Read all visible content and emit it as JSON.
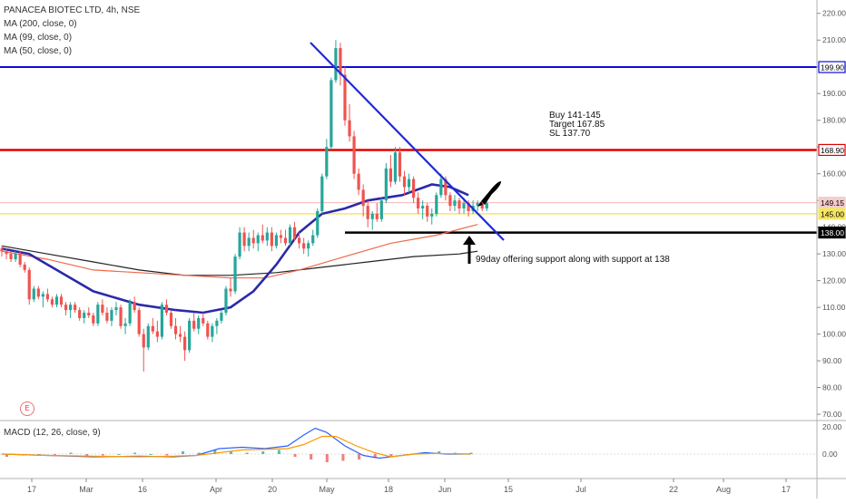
{
  "legend": {
    "symbol": "PANACEA BIOTEC LTD, 4h, NSE",
    "ma200": "MA (200, close, 0)",
    "ma99": "MA (99, close, 0)",
    "ma50": "MA (50, close, 0)",
    "macd": "MACD (12, 26, close, 9)"
  },
  "annotations": {
    "trade_plan": [
      "Buy 141-145",
      "Target 167.85",
      "SL 137.70"
    ],
    "support_note": "99day offering support along with support at 138",
    "earnings_badge": "E"
  },
  "colors": {
    "up": "#26a69a",
    "down": "#ef5350",
    "ma200": "#222222",
    "ma99": "#f0684a",
    "ma50": "#2a2aa8",
    "trendline": "#1f2bd6",
    "level_blue": "#0c0cd8",
    "level_red": "#e00000",
    "level_yellow": "#f5e663",
    "macd": "#2962ff",
    "signal": "#ff9800"
  },
  "chart_data": {
    "type": "candlestick",
    "price_axis": {
      "ticks": [
        "220.00",
        "210.00",
        "200.00",
        "190.00",
        "180.00",
        "170.00",
        "160.00",
        "150.00",
        "140.00",
        "130.00",
        "120.00",
        "110.00",
        "100.00",
        "90.00",
        "80.00",
        "70.00"
      ],
      "range": [
        68,
        225
      ]
    },
    "macd_axis": {
      "ticks": [
        "20.00",
        "0.00"
      ],
      "range": [
        -18,
        24
      ]
    },
    "time_axis": [
      "17",
      "Mar",
      "16",
      "Apr",
      "20",
      "May",
      "18",
      "Jun",
      "15",
      "Jul",
      "22",
      "Aug",
      "17"
    ],
    "price_labels": [
      {
        "value": 199.9,
        "text": "199.90",
        "style": "blue"
      },
      {
        "value": 168.9,
        "text": "168.90",
        "style": "red"
      },
      {
        "value": 149.15,
        "text": "149.15",
        "style": "pink"
      },
      {
        "value": 145.0,
        "text": "145.00",
        "style": "yellow"
      },
      {
        "value": 138.0,
        "text": "138.00",
        "style": "black"
      }
    ],
    "horizontal_levels": [
      {
        "value": 199.9,
        "color": "level_blue"
      },
      {
        "value": 168.9,
        "color": "level_red"
      },
      {
        "value": 149.15,
        "color": "pink"
      },
      {
        "value": 145.0,
        "color": "level_yellow"
      }
    ],
    "support_line": {
      "value": 138.0,
      "from_bar": 144,
      "to_bar": 999
    },
    "trendline": [
      {
        "bar": 128,
        "price": 211
      },
      {
        "bar": 213,
        "price": 139
      }
    ],
    "candles": [
      [
        132,
        133,
        129,
        131
      ],
      [
        131,
        132,
        128,
        130
      ],
      [
        130,
        131,
        127,
        128
      ],
      [
        128,
        131,
        127,
        130
      ],
      [
        130,
        131,
        125,
        126
      ],
      [
        126,
        127,
        123,
        124
      ],
      [
        124,
        125,
        111,
        113
      ],
      [
        113,
        118,
        112,
        117
      ],
      [
        117,
        118,
        113,
        114
      ],
      [
        114,
        116,
        110,
        115
      ],
      [
        115,
        117,
        112,
        113
      ],
      [
        113,
        114,
        110,
        111
      ],
      [
        111,
        115,
        110,
        114
      ],
      [
        114,
        115,
        110,
        111
      ],
      [
        111,
        112,
        107,
        109
      ],
      [
        109,
        112,
        106,
        111
      ],
      [
        111,
        112,
        108,
        109
      ],
      [
        109,
        110,
        105,
        106
      ],
      [
        106,
        109,
        104,
        108
      ],
      [
        108,
        110,
        106,
        107
      ],
      [
        107,
        108,
        103,
        104
      ],
      [
        104,
        112,
        103,
        111
      ],
      [
        111,
        113,
        107,
        108
      ],
      [
        108,
        110,
        104,
        105
      ],
      [
        105,
        110,
        103,
        109
      ],
      [
        109,
        112,
        107,
        110
      ],
      [
        110,
        111,
        102,
        103
      ],
      [
        103,
        106,
        100,
        104
      ],
      [
        104,
        113,
        103,
        112
      ],
      [
        112,
        114,
        108,
        109
      ],
      [
        109,
        110,
        99,
        100
      ],
      [
        100,
        102,
        86,
        95
      ],
      [
        95,
        104,
        94,
        103
      ],
      [
        103,
        106,
        100,
        101
      ],
      [
        101,
        105,
        97,
        99
      ],
      [
        99,
        112,
        98,
        111
      ],
      [
        111,
        113,
        107,
        108
      ],
      [
        108,
        109,
        102,
        103
      ],
      [
        103,
        106,
        98,
        100
      ],
      [
        100,
        103,
        97,
        99
      ],
      [
        99,
        101,
        90,
        94
      ],
      [
        94,
        106,
        93,
        105
      ],
      [
        105,
        108,
        101,
        102
      ],
      [
        102,
        107,
        100,
        106
      ],
      [
        106,
        108,
        103,
        104
      ],
      [
        104,
        105,
        98,
        99
      ],
      [
        99,
        104,
        97,
        103
      ],
      [
        103,
        106,
        100,
        105
      ],
      [
        105,
        109,
        104,
        108
      ],
      [
        108,
        118,
        107,
        117
      ],
      [
        117,
        121,
        114,
        116
      ],
      [
        116,
        130,
        115,
        129
      ],
      [
        129,
        140,
        128,
        138
      ],
      [
        138,
        140,
        131,
        133
      ],
      [
        133,
        138,
        131,
        136
      ],
      [
        136,
        139,
        132,
        134
      ],
      [
        134,
        138,
        131,
        137
      ],
      [
        137,
        141,
        134,
        135
      ],
      [
        135,
        140,
        133,
        138
      ],
      [
        138,
        140,
        131,
        133
      ],
      [
        133,
        138,
        132,
        137
      ],
      [
        137,
        139,
        134,
        136
      ],
      [
        136,
        139,
        133,
        134
      ],
      [
        134,
        141,
        133,
        140
      ],
      [
        140,
        142,
        135,
        136
      ],
      [
        136,
        138,
        132,
        134
      ],
      [
        134,
        136,
        130,
        132
      ],
      [
        132,
        135,
        129,
        134
      ],
      [
        134,
        139,
        133,
        137
      ],
      [
        137,
        147,
        136,
        146
      ],
      [
        146,
        160,
        145,
        159
      ],
      [
        159,
        173,
        158,
        170
      ],
      [
        170,
        196,
        169,
        195
      ],
      [
        195,
        210,
        194,
        207
      ],
      [
        207,
        209,
        193,
        197
      ],
      [
        197,
        200,
        178,
        180
      ],
      [
        180,
        186,
        172,
        174
      ],
      [
        174,
        176,
        158,
        160
      ],
      [
        160,
        162,
        152,
        154
      ],
      [
        154,
        156,
        144,
        148
      ],
      [
        148,
        150,
        140,
        143
      ],
      [
        143,
        146,
        139,
        145
      ],
      [
        145,
        149,
        142,
        143
      ],
      [
        143,
        151,
        142,
        150
      ],
      [
        150,
        164,
        149,
        162
      ],
      [
        162,
        167,
        155,
        157
      ],
      [
        157,
        170,
        156,
        168
      ],
      [
        168,
        170,
        157,
        159
      ],
      [
        159,
        161,
        152,
        155
      ],
      [
        155,
        160,
        153,
        158
      ],
      [
        158,
        159,
        149,
        151
      ],
      [
        151,
        153,
        145,
        147
      ],
      [
        147,
        150,
        143,
        148
      ],
      [
        148,
        149,
        142,
        144
      ],
      [
        144,
        147,
        141,
        145
      ],
      [
        145,
        153,
        144,
        152
      ],
      [
        152,
        160,
        151,
        158
      ],
      [
        158,
        159,
        150,
        152
      ],
      [
        152,
        153,
        146,
        148
      ],
      [
        148,
        152,
        146,
        150
      ],
      [
        150,
        151,
        145,
        147
      ],
      [
        147,
        151,
        145,
        149
      ],
      [
        149,
        150,
        144,
        146
      ],
      [
        146,
        150,
        145,
        148
      ],
      [
        148,
        150,
        146,
        149
      ],
      [
        149,
        150,
        146,
        147
      ],
      [
        147,
        150,
        146,
        149
      ]
    ],
    "candle_bars_start": 0,
    "candle_bar_step": 1.64,
    "ma50": [
      [
        0,
        132
      ],
      [
        12,
        130
      ],
      [
        24,
        124
      ],
      [
        40,
        116
      ],
      [
        60,
        111
      ],
      [
        76,
        109
      ],
      [
        88,
        108
      ],
      [
        100,
        110
      ],
      [
        110,
        116
      ],
      [
        120,
        126
      ],
      [
        130,
        138
      ],
      [
        140,
        145
      ],
      [
        150,
        147
      ],
      [
        160,
        150
      ],
      [
        175,
        152
      ],
      [
        188,
        156
      ],
      [
        196,
        155
      ],
      [
        204,
        152
      ]
    ],
    "ma99": [
      [
        0,
        131
      ],
      [
        20,
        128
      ],
      [
        40,
        124
      ],
      [
        60,
        123
      ],
      [
        80,
        122
      ],
      [
        100,
        121
      ],
      [
        115,
        121
      ],
      [
        130,
        124
      ],
      [
        150,
        129
      ],
      [
        170,
        134
      ],
      [
        190,
        137
      ],
      [
        208,
        141
      ]
    ],
    "ma200": [
      [
        0,
        133
      ],
      [
        20,
        130
      ],
      [
        40,
        127
      ],
      [
        60,
        124
      ],
      [
        80,
        122
      ],
      [
        100,
        122
      ],
      [
        120,
        123
      ],
      [
        140,
        125
      ],
      [
        160,
        127
      ],
      [
        180,
        129
      ],
      [
        200,
        130
      ],
      [
        208,
        131
      ]
    ],
    "macd": [
      [
        0,
        0
      ],
      [
        20,
        -1
      ],
      [
        40,
        -2
      ],
      [
        60,
        -1.5
      ],
      [
        75,
        -2
      ],
      [
        85,
        -1
      ],
      [
        95,
        4
      ],
      [
        105,
        5
      ],
      [
        115,
        4
      ],
      [
        125,
        6
      ],
      [
        132,
        14
      ],
      [
        137,
        19
      ],
      [
        142,
        16
      ],
      [
        150,
        6
      ],
      [
        158,
        -1
      ],
      [
        165,
        -3
      ],
      [
        175,
        -1
      ],
      [
        185,
        1
      ],
      [
        195,
        0
      ],
      [
        205,
        0
      ]
    ],
    "signal": [
      [
        0,
        0
      ],
      [
        20,
        -1
      ],
      [
        40,
        -1.5
      ],
      [
        60,
        -2
      ],
      [
        75,
        -1.5
      ],
      [
        85,
        -1
      ],
      [
        95,
        1
      ],
      [
        105,
        3
      ],
      [
        115,
        3.5
      ],
      [
        125,
        4
      ],
      [
        132,
        7
      ],
      [
        140,
        13
      ],
      [
        146,
        13
      ],
      [
        155,
        6
      ],
      [
        163,
        1
      ],
      [
        170,
        -2
      ],
      [
        180,
        0
      ],
      [
        190,
        0.5
      ],
      [
        205,
        0
      ]
    ],
    "histogram": [
      -2,
      -1,
      0,
      -1,
      1,
      -2,
      -1,
      0,
      1,
      0,
      -1,
      2,
      1,
      3,
      2,
      1,
      2,
      3,
      -2,
      -4,
      -6,
      -5,
      -4,
      -3,
      -2,
      -1,
      1,
      2,
      1,
      1
    ]
  }
}
